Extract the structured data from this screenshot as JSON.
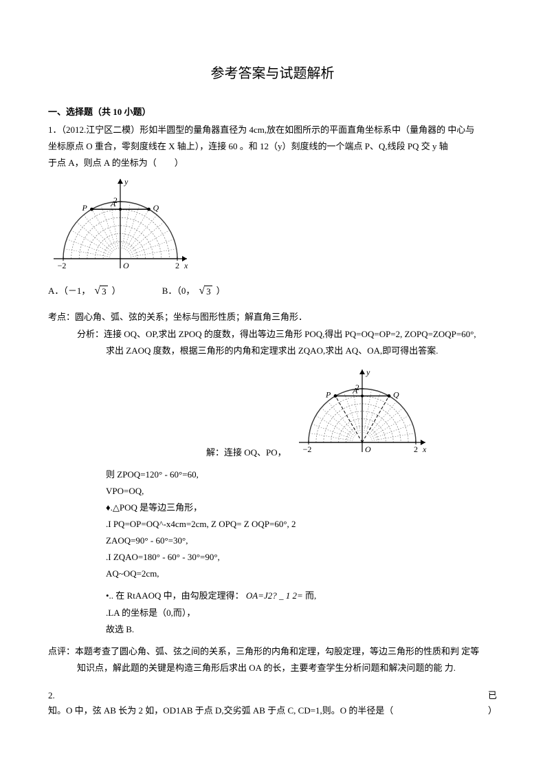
{
  "title": "参考答案与试题解析",
  "section1": {
    "heading": "一、选择题（共 10 小题）",
    "q1": {
      "line1": "1．（2012.江宁区二模）形如半圆型的量角器直径为 4cm,放在如图所示的平面直角坐标系中（量角器的 中心与",
      "line2": "坐标原点 O 重合，零刻度线在 X 轴上），连接 60 。和 12（y）刻度线的一个端点 P、Q,线段 PQ 交 y 轴",
      "line3": "于点 A，则点 A 的坐标为（　　）",
      "optA_label": "A．（－1，",
      "optA_val": "3",
      "optA_close": "）",
      "optB_label": "B．（0，",
      "optB_val": "3",
      "optB_close": "）"
    },
    "analysis": {
      "kaodian": "考点：圆心角、弧、弦的关系；坐标与图形性质；解直角三角形．",
      "fenxi1": "分析：连接 OQ、OP,求出 ZPOQ 的度数，得出等边三角形 POQ,得出 PQ=OQ=OP=2, ZOPQ=ZOQP=60°,",
      "fenxi2": "求出 ZAOQ 度数，根据三角形的内角和定理求出 ZQAO,求出 AQ、OA,即可得出答案.",
      "fig2_label": "解：连接 OQ、PO，",
      "s1": "则 ZPOQ=120° - 60°=60,",
      "s2": "VPO=OQ,",
      "s3": "♦.△POQ 是等边三角形，",
      "s4": ".I PQ=OP=OQ^-x4cm=2cm, Z OPQ= Z OQP=60°, 2",
      "s5": "ZAOQ=90° - 60°=30°,",
      "s6": ".I ZQAO=180° - 60° - 30°=90°,",
      "s7": "AQ~OQ=2cm,",
      "s8a": "•.. 在 RtAAOQ 中，由勾股定理得：",
      "s8b": "OA=J2? _ 1 2= ",
      "s8c": "而,",
      "s9": ".LA 的坐标是（0,而），",
      "s10": "故选 B.",
      "dp1": "点评：本题考查了圆心角、弧、弦之间的关系，三角形的内角和定理，勾股定理，等边三角形的性质和判  定等",
      "dp2": "知识点，解此题的关键是构造三角形后求出 OA 的长，主要考查学生分析问题和解决问题的能  力."
    },
    "q2": {
      "left1": "2.",
      "right1": "已",
      "line2left": "知。O 中，弦 AB 长为 2 如，OD1AB 于点 D,交劣弧 AB 于点 C, CD=1,则。O 的半径是（",
      "line2right": "）"
    }
  },
  "figure": {
    "bg": "#ffffff",
    "outline": "#333333",
    "hatch": "#777777",
    "axis": "#000000",
    "labels": {
      "P": "P",
      "A": "A",
      "Q": "Q",
      "O": "O",
      "x": "x",
      "y": "y",
      "m2": "−2",
      "p2": "2",
      "t2": "2"
    },
    "dims": {
      "w1": 210,
      "h1": 150,
      "w2": 200,
      "h2": 140
    }
  }
}
